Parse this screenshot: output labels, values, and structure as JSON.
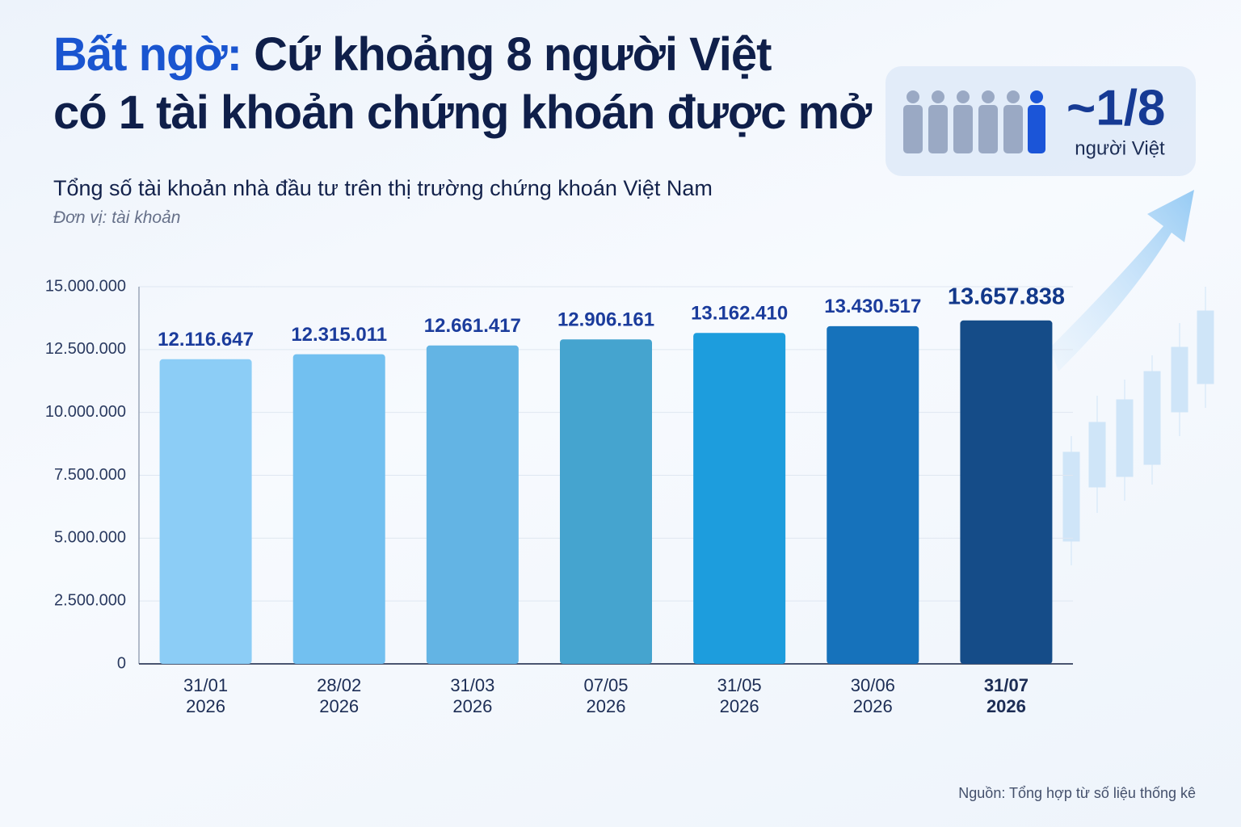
{
  "chart_data": {
    "type": "bar",
    "title_highlight": "Bất ngờ:",
    "title_line1": "Cứ khoảng 8 người Việt",
    "title_line2": "có 1 tài khoản chứng khoán được mở",
    "badge_value": "~1/8",
    "badge_label": "người Việt",
    "subtitle": "Tổng số tài khoản nhà đầu tư trên thị trường chứng khoán Việt Nam",
    "unit": "Đơn vị: tài khoản",
    "source": "Nguồn: Tổng hợp từ số liệu thống kê",
    "categories": [
      "31/01 2026",
      "28/02 2026",
      "31/03 2026",
      "07/05 2026",
      "31/05 2026",
      "30/06 2026",
      "31/07 2026"
    ],
    "values": [
      12116647,
      12315011,
      12661417,
      12906161,
      13162410,
      13430517,
      13657838
    ],
    "value_labels": [
      "12.116.647",
      "12.315.011",
      "12.661.417",
      "12.906.161",
      "13.162.410",
      "13.430.517",
      "13.657.838"
    ],
    "colors": [
      "#8ccdf6",
      "#72c0f0",
      "#63b4e4",
      "#45a4cf",
      "#1d9ddd",
      "#1672bb",
      "#154c88"
    ],
    "ylim": [
      0,
      15000000
    ],
    "yticks": [
      0,
      {
        "value": 2500000,
        "label": "2.500.000"
      },
      {
        "value": 5000000,
        "label": "5.000.000"
      },
      {
        "value": 7500000,
        "label": "7.500.000"
      },
      {
        "value": 10000000,
        "label": "10.000.000"
      },
      {
        "value": 12500000,
        "label": "12.500.000"
      },
      {
        "value": 15000000,
        "label": "15.000.000"
      }
    ],
    "grid": true
  }
}
